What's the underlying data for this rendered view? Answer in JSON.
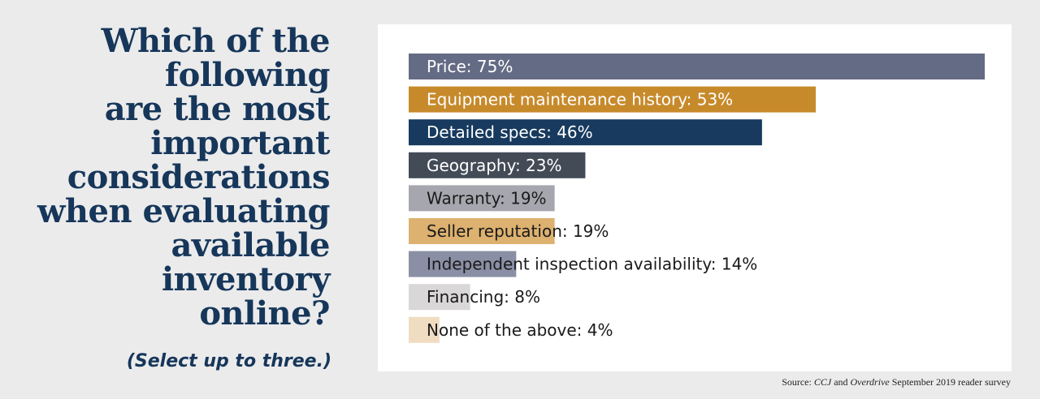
{
  "question": {
    "lines": [
      "Which of the",
      "following",
      "are the most",
      "important",
      "considerations",
      "when evaluating",
      "available",
      "inventory",
      "online?"
    ],
    "note": "(Select up to three.)"
  },
  "source": {
    "prefix": "Source: ",
    "pub1": "CCJ",
    "mid": " and ",
    "pub2": "Overdrive",
    "suffix": " September 2019 reader survey"
  },
  "chart_data": {
    "type": "bar",
    "orientation": "horizontal",
    "title": "",
    "xlabel": "",
    "ylabel": "",
    "xlim": [
      0,
      75
    ],
    "grid": false,
    "legend": "none",
    "categories": [
      "Price",
      "Equipment maintenance history",
      "Detailed specs",
      "Geography",
      "Warranty",
      "Seller reputation",
      "Independent inspection availability",
      "Financing",
      "None of the above"
    ],
    "values": [
      75,
      53,
      46,
      23,
      19,
      19,
      14,
      8,
      4
    ],
    "labels": [
      "Price: 75%",
      "Equipment maintenance history: 53%",
      "Detailed specs: 46%",
      "Geography: 23%",
      "Warranty: 19%",
      "Seller reputation: 19%",
      "Independent inspection availability: 14%",
      "Financing: 8%",
      "None of the above: 4%"
    ],
    "colors": [
      "#646b84",
      "#c78a2b",
      "#173a5e",
      "#434b57",
      "#a6a7ae",
      "#ddb16f",
      "#8a8fa5",
      "#d9d7d8",
      "#f0dcc1"
    ],
    "label_colors": [
      "#ffffff",
      "#ffffff",
      "#ffffff",
      "#ffffff",
      "#1a1a1a",
      "#1a1a1a",
      "#1a1a1a",
      "#1a1a1a",
      "#1a1a1a"
    ]
  }
}
